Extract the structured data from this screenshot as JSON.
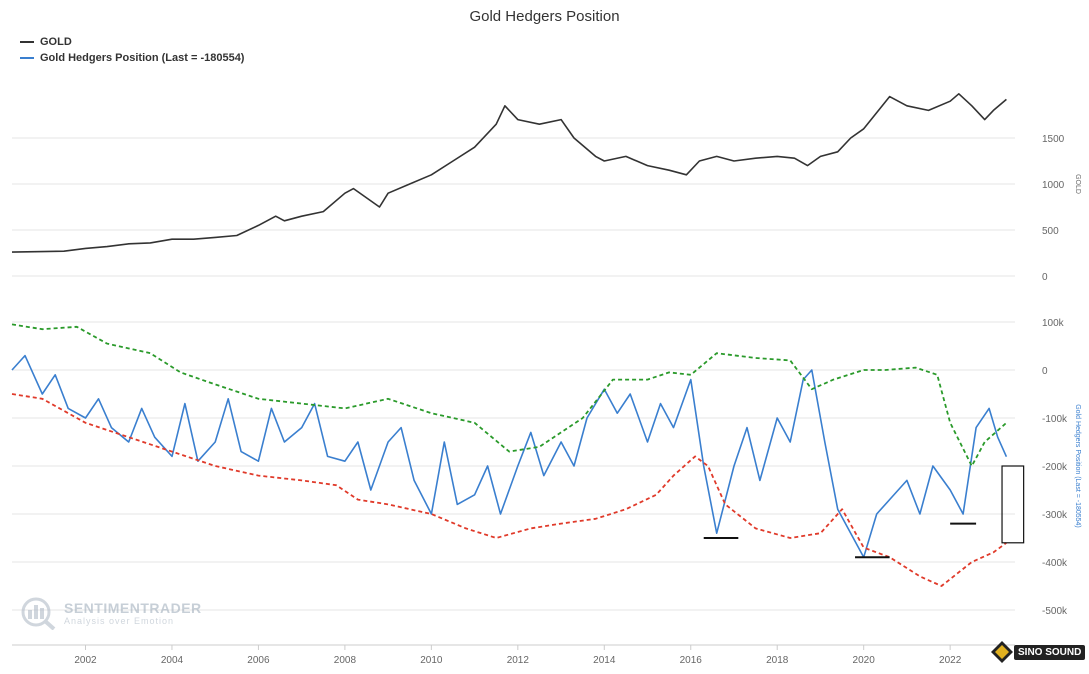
{
  "title": "Gold Hedgers Position",
  "legend": [
    {
      "label": "GOLD",
      "color": "#333333"
    },
    {
      "label": "Gold Hedgers Position (Last = -180554)",
      "color": "#3a7fcf"
    }
  ],
  "watermark": {
    "name": "SENTIMENTRADER",
    "tagline": "Analysis over Emotion"
  },
  "brand": {
    "name": "SINO SOUND"
  },
  "chart_data": {
    "type": "line",
    "x_range": [
      2000.3,
      2023.5
    ],
    "x_ticks": [
      "2002",
      "2004",
      "2006",
      "2008",
      "2010",
      "2012",
      "2014",
      "2016",
      "2018",
      "2020",
      "2022"
    ],
    "x_tick_values": [
      2002,
      2004,
      2006,
      2008,
      2010,
      2012,
      2014,
      2016,
      2018,
      2020,
      2022
    ],
    "panels": [
      {
        "name": "gold-panel",
        "ylabel": "GOLD",
        "ylim": [
          0,
          2000
        ],
        "y_ticks": [
          "0",
          "500",
          "1000",
          "1500"
        ],
        "y_tick_values": [
          0,
          500,
          1000,
          1500
        ],
        "series": [
          {
            "name": "GOLD",
            "color": "#333333",
            "style": "solid",
            "x": [
              2000.3,
              2001,
              2001.5,
              2002,
              2002.5,
              2003,
              2003.5,
              2004,
              2004.5,
              2005,
              2005.5,
              2006,
              2006.4,
              2006.6,
              2007,
              2007.5,
              2008,
              2008.2,
              2008.8,
              2009,
              2009.5,
              2010,
              2010.5,
              2011,
              2011.5,
              2011.7,
              2012,
              2012.5,
              2013,
              2013.3,
              2013.8,
              2014,
              2014.5,
              2015,
              2015.5,
              2015.9,
              2016.2,
              2016.6,
              2017,
              2017.5,
              2018,
              2018.4,
              2018.7,
              2019,
              2019.4,
              2019.7,
              2020,
              2020.6,
              2021,
              2021.5,
              2022,
              2022.2,
              2022.5,
              2022.8,
              2023,
              2023.3
            ],
            "y": [
              260,
              265,
              270,
              300,
              320,
              350,
              360,
              400,
              400,
              420,
              440,
              550,
              650,
              600,
              650,
              700,
              900,
              950,
              750,
              900,
              1000,
              1100,
              1250,
              1400,
              1650,
              1850,
              1700,
              1650,
              1700,
              1500,
              1300,
              1250,
              1300,
              1200,
              1150,
              1100,
              1250,
              1300,
              1250,
              1280,
              1300,
              1280,
              1200,
              1300,
              1350,
              1500,
              1600,
              1950,
              1850,
              1800,
              1900,
              1980,
              1850,
              1700,
              1800,
              1920
            ]
          }
        ]
      },
      {
        "name": "hedgers-panel",
        "ylabel": "Gold Hedgers Position (Last = -180554)",
        "ylim": [
          -500000,
          100000
        ],
        "y_ticks": [
          "100k",
          "0",
          "-100k",
          "-200k",
          "-300k",
          "-400k",
          "-500k"
        ],
        "y_tick_values": [
          100000,
          0,
          -100000,
          -200000,
          -300000,
          -400000,
          -500000
        ],
        "series": [
          {
            "name": "Gold Hedgers Position",
            "color": "#3a7fcf",
            "style": "solid",
            "x": [
              2000.3,
              2000.6,
              2001,
              2001.3,
              2001.6,
              2002,
              2002.3,
              2002.6,
              2003,
              2003.3,
              2003.6,
              2004,
              2004.3,
              2004.6,
              2005,
              2005.3,
              2005.6,
              2006,
              2006.3,
              2006.6,
              2007,
              2007.3,
              2007.6,
              2008,
              2008.3,
              2008.6,
              2009,
              2009.3,
              2009.6,
              2010,
              2010.3,
              2010.6,
              2011,
              2011.3,
              2011.6,
              2012,
              2012.3,
              2012.6,
              2013,
              2013.3,
              2013.6,
              2014,
              2014.3,
              2014.6,
              2015,
              2015.3,
              2015.6,
              2016,
              2016.3,
              2016.6,
              2017,
              2017.3,
              2017.6,
              2018,
              2018.3,
              2018.6,
              2018.8,
              2019.1,
              2019.4,
              2019.7,
              2020,
              2020.3,
              2020.6,
              2021,
              2021.3,
              2021.6,
              2022,
              2022.3,
              2022.6,
              2022.9,
              2023.1,
              2023.3
            ],
            "y": [
              0,
              30000,
              -50000,
              -10000,
              -80000,
              -100000,
              -60000,
              -120000,
              -150000,
              -80000,
              -140000,
              -180000,
              -70000,
              -190000,
              -150000,
              -60000,
              -170000,
              -190000,
              -80000,
              -150000,
              -120000,
              -70000,
              -180000,
              -190000,
              -150000,
              -250000,
              -150000,
              -120000,
              -230000,
              -300000,
              -150000,
              -280000,
              -260000,
              -200000,
              -300000,
              -200000,
              -130000,
              -220000,
              -150000,
              -200000,
              -100000,
              -40000,
              -90000,
              -50000,
              -150000,
              -70000,
              -120000,
              -20000,
              -200000,
              -340000,
              -200000,
              -120000,
              -230000,
              -100000,
              -150000,
              -20000,
              0,
              -150000,
              -290000,
              -340000,
              -390000,
              -300000,
              -270000,
              -230000,
              -300000,
              -200000,
              -250000,
              -300000,
              -120000,
              -80000,
              -140000,
              -180554
            ]
          },
          {
            "name": "Upper band",
            "color": "#2a9a2a",
            "style": "dashed",
            "x": [
              2000.3,
              2001,
              2001.8,
              2002.5,
              2003.5,
              2004.2,
              2005,
              2006,
              2007,
              2008,
              2009,
              2010,
              2011,
              2011.8,
              2012.5,
              2013.5,
              2014.2,
              2015,
              2015.5,
              2016,
              2016.6,
              2017.5,
              2018.3,
              2018.8,
              2019.3,
              2020,
              2020.5,
              2021.2,
              2021.7,
              2022,
              2022.5,
              2022.8,
              2023.3
            ],
            "y": [
              95000,
              85000,
              90000,
              55000,
              35000,
              -5000,
              -30000,
              -60000,
              -70000,
              -80000,
              -60000,
              -90000,
              -110000,
              -170000,
              -160000,
              -100000,
              -20000,
              -20000,
              -5000,
              -10000,
              35000,
              25000,
              20000,
              -40000,
              -20000,
              0,
              0,
              5000,
              -10000,
              -110000,
              -200000,
              -150000,
              -110000
            ]
          },
          {
            "name": "Lower band",
            "color": "#e03a2a",
            "style": "dashed",
            "x": [
              2000.3,
              2001,
              2002,
              2003,
              2004,
              2005,
              2006,
              2007,
              2007.8,
              2008.3,
              2009,
              2010,
              2010.8,
              2011.5,
              2012.3,
              2013,
              2013.8,
              2014.5,
              2015.2,
              2015.6,
              2016.1,
              2016.4,
              2016.8,
              2017.5,
              2018.3,
              2019,
              2019.5,
              2020,
              2020.6,
              2021.3,
              2021.8,
              2022.5,
              2023,
              2023.3
            ],
            "y": [
              -50000,
              -60000,
              -110000,
              -140000,
              -170000,
              -200000,
              -220000,
              -230000,
              -240000,
              -270000,
              -280000,
              -300000,
              -330000,
              -350000,
              -330000,
              -320000,
              -310000,
              -290000,
              -260000,
              -220000,
              -180000,
              -200000,
              -280000,
              -330000,
              -350000,
              -340000,
              -290000,
              -370000,
              -390000,
              -430000,
              -450000,
              -400000,
              -380000,
              -360000
            ]
          }
        ],
        "annotations": [
          {
            "type": "hline",
            "x1": 2016.3,
            "x2": 2017.1,
            "y": -350000
          },
          {
            "type": "hline",
            "x1": 2019.8,
            "x2": 2020.6,
            "y": -390000
          },
          {
            "type": "hline",
            "x1": 2022.0,
            "x2": 2022.6,
            "y": -320000
          },
          {
            "type": "box",
            "x1": 2023.2,
            "x2": 2023.7,
            "y1": -200000,
            "y2": -360000
          }
        ]
      }
    ]
  }
}
